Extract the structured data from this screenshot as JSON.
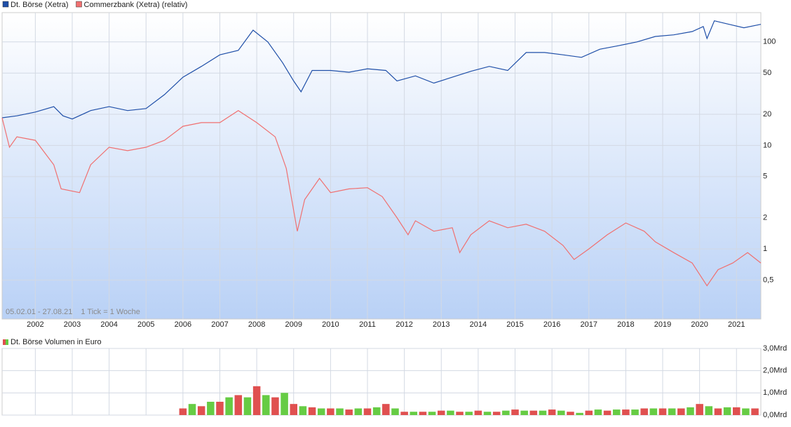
{
  "chart_data": [
    {
      "type": "line",
      "log_scale": true,
      "grid": true,
      "annotations": [
        "05.02.01 - 27.08.21",
        "1 Tick = 1 Woche"
      ],
      "xlim": [
        2001.1,
        2021.66
      ],
      "xticks": [
        2002,
        2003,
        2004,
        2005,
        2006,
        2007,
        2008,
        2009,
        2010,
        2011,
        2012,
        2013,
        2014,
        2015,
        2016,
        2017,
        2018,
        2019,
        2020,
        2021
      ],
      "ylim": [
        0.21,
        192
      ],
      "yticks": [
        {
          "value": 0.5,
          "label": "0,5"
        },
        1,
        2,
        5,
        10,
        20,
        50,
        100
      ],
      "series": [
        {
          "name": "Dt. Börse (Xetra)",
          "color": "#1f4fa8",
          "x": [
            2001.1,
            2001.5,
            2002.0,
            2002.5,
            2002.75,
            2003.0,
            2003.5,
            2004.0,
            2004.5,
            2005.0,
            2005.5,
            2006.0,
            2006.5,
            2007.0,
            2007.5,
            2007.9,
            2008.3,
            2008.7,
            2009.0,
            2009.2,
            2009.5,
            2010.0,
            2010.5,
            2011.0,
            2011.5,
            2011.8,
            2012.3,
            2012.8,
            2013.3,
            2013.8,
            2014.3,
            2014.8,
            2015.3,
            2015.8,
            2016.3,
            2016.8,
            2017.3,
            2017.8,
            2018.3,
            2018.8,
            2019.3,
            2019.8,
            2020.1,
            2020.2,
            2020.4,
            2020.8,
            2021.2,
            2021.66
          ],
          "values": [
            18.5,
            19.3,
            21,
            23.7,
            19.3,
            18,
            21.7,
            23.7,
            21.7,
            22.7,
            31,
            45.6,
            58,
            75,
            83,
            130,
            100,
            63,
            42,
            33,
            53,
            53,
            51,
            55,
            53,
            42,
            47,
            40,
            45.6,
            52,
            58,
            53,
            79,
            79,
            75,
            71,
            85,
            92,
            100,
            113,
            117,
            126,
            141,
            108,
            160,
            148,
            137,
            148
          ]
        },
        {
          "name": "Commerzbank (Xetra) (relativ)",
          "color": "#f07070",
          "x": [
            2001.1,
            2001.3,
            2001.5,
            2002.0,
            2002.5,
            2002.7,
            2003.2,
            2003.5,
            2004.0,
            2004.5,
            2005.0,
            2005.5,
            2006.0,
            2006.5,
            2007.0,
            2007.5,
            2008.0,
            2008.5,
            2008.8,
            2009.1,
            2009.3,
            2009.7,
            2010.0,
            2010.5,
            2011.0,
            2011.4,
            2011.8,
            2012.1,
            2012.3,
            2012.8,
            2013.3,
            2013.5,
            2013.8,
            2014.3,
            2014.8,
            2015.3,
            2015.8,
            2016.3,
            2016.6,
            2017.0,
            2017.5,
            2018.0,
            2018.5,
            2018.8,
            2019.3,
            2019.8,
            2020.2,
            2020.5,
            2020.9,
            2021.3,
            2021.66
          ],
          "values": [
            18.5,
            9.6,
            12.1,
            11.2,
            6.5,
            3.8,
            3.5,
            6.5,
            9.6,
            8.9,
            9.6,
            11.2,
            15.3,
            16.6,
            16.6,
            21.7,
            16.6,
            12.1,
            6,
            1.48,
            3,
            4.8,
            3.5,
            3.8,
            3.9,
            3.2,
            2,
            1.37,
            1.87,
            1.48,
            1.6,
            0.92,
            1.37,
            1.87,
            1.6,
            1.73,
            1.48,
            1.08,
            0.79,
            1,
            1.37,
            1.78,
            1.48,
            1.17,
            0.92,
            0.73,
            0.44,
            0.63,
            0.73,
            0.92,
            0.73
          ]
        }
      ]
    },
    {
      "type": "bar",
      "ylim": [
        0,
        3
      ],
      "yticks": [
        {
          "value": 0,
          "label": "0,0Mrd"
        },
        {
          "value": 1,
          "label": "1,0Mrd"
        },
        {
          "value": 2,
          "label": "2,0Mrd"
        },
        {
          "value": 3,
          "label": "3,0Mrd"
        }
      ],
      "series": [
        {
          "name": "Dt. Börse Volumen in Euro",
          "color": [
            "#e05050",
            "#66cc44"
          ],
          "x": [
            2006.0,
            2006.25,
            2006.5,
            2006.75,
            2007.0,
            2007.25,
            2007.5,
            2007.75,
            2008.0,
            2008.25,
            2008.5,
            2008.75,
            2009.0,
            2009.25,
            2009.5,
            2009.75,
            2010.0,
            2010.25,
            2010.5,
            2010.75,
            2011.0,
            2011.25,
            2011.5,
            2011.75,
            2012.0,
            2012.25,
            2012.5,
            2012.75,
            2013.0,
            2013.25,
            2013.5,
            2013.75,
            2014.0,
            2014.25,
            2014.5,
            2014.75,
            2015.0,
            2015.25,
            2015.5,
            2015.75,
            2016.0,
            2016.25,
            2016.5,
            2016.75,
            2017.0,
            2017.25,
            2017.5,
            2017.75,
            2018.0,
            2018.25,
            2018.5,
            2018.75,
            2019.0,
            2019.25,
            2019.5,
            2019.75,
            2020.0,
            2020.25,
            2020.5,
            2020.75,
            2021.0,
            2021.25,
            2021.5
          ],
          "values": [
            0.3,
            0.5,
            0.4,
            0.6,
            0.6,
            0.8,
            0.9,
            0.8,
            1.3,
            0.9,
            0.8,
            1.0,
            0.5,
            0.4,
            0.35,
            0.3,
            0.3,
            0.3,
            0.25,
            0.3,
            0.3,
            0.35,
            0.5,
            0.3,
            0.15,
            0.15,
            0.15,
            0.15,
            0.2,
            0.2,
            0.15,
            0.15,
            0.2,
            0.15,
            0.15,
            0.2,
            0.25,
            0.2,
            0.2,
            0.2,
            0.25,
            0.2,
            0.15,
            0.1,
            0.2,
            0.25,
            0.2,
            0.25,
            0.25,
            0.25,
            0.3,
            0.3,
            0.3,
            0.3,
            0.3,
            0.35,
            0.5,
            0.4,
            0.3,
            0.35,
            0.35,
            0.3,
            0.3
          ]
        }
      ]
    }
  ]
}
